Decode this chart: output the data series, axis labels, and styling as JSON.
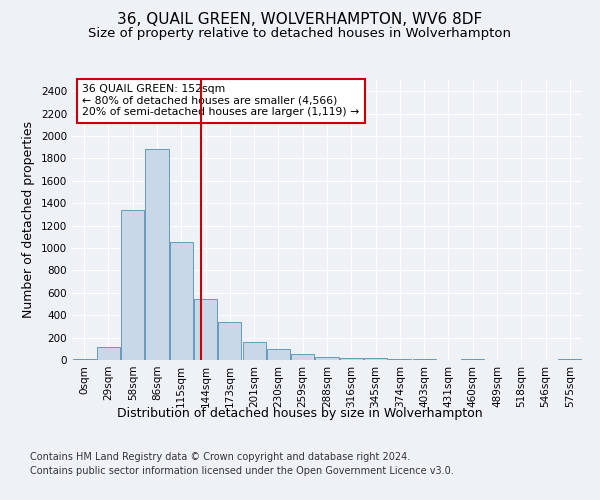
{
  "title": "36, QUAIL GREEN, WOLVERHAMPTON, WV6 8DF",
  "subtitle": "Size of property relative to detached houses in Wolverhampton",
  "xlabel": "Distribution of detached houses by size in Wolverhampton",
  "ylabel": "Number of detached properties",
  "categories": [
    "0sqm",
    "29sqm",
    "58sqm",
    "86sqm",
    "115sqm",
    "144sqm",
    "173sqm",
    "201sqm",
    "230sqm",
    "259sqm",
    "288sqm",
    "316sqm",
    "345sqm",
    "374sqm",
    "403sqm",
    "431sqm",
    "460sqm",
    "489sqm",
    "518sqm",
    "546sqm",
    "575sqm"
  ],
  "values": [
    10,
    120,
    1340,
    1880,
    1050,
    545,
    335,
    165,
    100,
    50,
    30,
    20,
    15,
    10,
    5,
    0,
    5,
    0,
    0,
    0,
    5
  ],
  "bar_color": "#c8d8e8",
  "bar_edgecolor": "#6699bb",
  "vline_x": 4.82,
  "vline_color": "#cc0000",
  "annotation_text": "36 QUAIL GREEN: 152sqm\n← 80% of detached houses are smaller (4,566)\n20% of semi-detached houses are larger (1,119) →",
  "annotation_box_color": "#ffffff",
  "annotation_box_edgecolor": "#cc0000",
  "footer_line1": "Contains HM Land Registry data © Crown copyright and database right 2024.",
  "footer_line2": "Contains public sector information licensed under the Open Government Licence v3.0.",
  "ylim": [
    0,
    2500
  ],
  "yticks": [
    0,
    200,
    400,
    600,
    800,
    1000,
    1200,
    1400,
    1600,
    1800,
    2000,
    2200,
    2400
  ],
  "background_color": "#eef2f7",
  "plot_background": "#eef2f7",
  "grid_color": "#ffffff",
  "title_fontsize": 11,
  "subtitle_fontsize": 9.5,
  "axis_label_fontsize": 9,
  "tick_fontsize": 7.5,
  "footer_fontsize": 7
}
